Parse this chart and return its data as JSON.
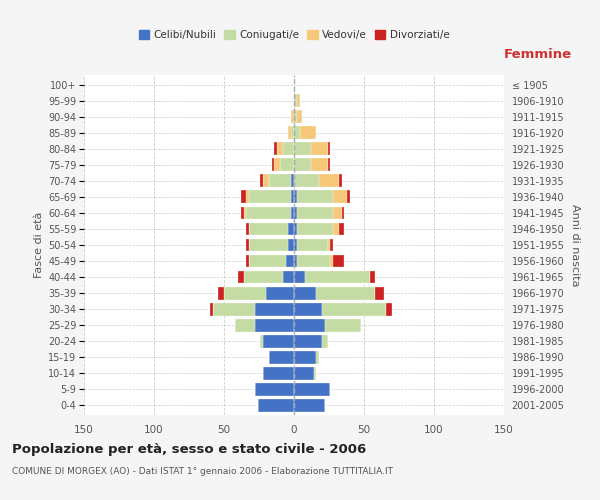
{
  "age_groups": [
    "0-4",
    "5-9",
    "10-14",
    "15-19",
    "20-24",
    "25-29",
    "30-34",
    "35-39",
    "40-44",
    "45-49",
    "50-54",
    "55-59",
    "60-64",
    "65-69",
    "70-74",
    "75-79",
    "80-84",
    "85-89",
    "90-94",
    "95-99",
    "100+"
  ],
  "birth_years": [
    "2001-2005",
    "1996-2000",
    "1991-1995",
    "1986-1990",
    "1981-1985",
    "1976-1980",
    "1971-1975",
    "1966-1970",
    "1961-1965",
    "1956-1960",
    "1951-1955",
    "1946-1950",
    "1941-1945",
    "1936-1940",
    "1931-1935",
    "1926-1930",
    "1921-1925",
    "1916-1920",
    "1911-1915",
    "1906-1910",
    "≤ 1905"
  ],
  "male": {
    "celibi": [
      26,
      28,
      22,
      18,
      22,
      28,
      28,
      20,
      8,
      6,
      4,
      4,
      2,
      2,
      2,
      0,
      0,
      0,
      0,
      0,
      0
    ],
    "coniugati": [
      0,
      0,
      0,
      0,
      2,
      14,
      30,
      30,
      28,
      26,
      28,
      28,
      32,
      30,
      16,
      10,
      8,
      2,
      0,
      0,
      0
    ],
    "vedovi": [
      0,
      0,
      0,
      0,
      0,
      0,
      0,
      0,
      0,
      0,
      0,
      0,
      2,
      2,
      4,
      4,
      4,
      2,
      2,
      0,
      0
    ],
    "divorziati": [
      0,
      0,
      0,
      0,
      0,
      0,
      2,
      4,
      4,
      2,
      2,
      2,
      2,
      4,
      2,
      2,
      2,
      0,
      0,
      0,
      0
    ]
  },
  "female": {
    "nubili": [
      22,
      26,
      14,
      16,
      20,
      22,
      20,
      16,
      8,
      2,
      2,
      2,
      2,
      2,
      0,
      0,
      0,
      0,
      0,
      0,
      0
    ],
    "coniugate": [
      0,
      0,
      2,
      2,
      4,
      26,
      46,
      42,
      46,
      24,
      22,
      26,
      26,
      26,
      18,
      12,
      12,
      4,
      2,
      2,
      0
    ],
    "vedove": [
      0,
      0,
      0,
      0,
      0,
      0,
      0,
      0,
      0,
      2,
      2,
      4,
      6,
      10,
      14,
      12,
      12,
      12,
      4,
      2,
      0
    ],
    "divorziate": [
      0,
      0,
      0,
      0,
      0,
      0,
      4,
      6,
      4,
      8,
      2,
      4,
      2,
      2,
      2,
      2,
      2,
      0,
      0,
      0,
      0
    ]
  },
  "colors": {
    "celibi": "#4472c4",
    "coniugati": "#c5dba4",
    "vedovi": "#f5c87a",
    "divorziati": "#cc2222"
  },
  "xlim": 150,
  "title": "Popolazione per età, sesso e stato civile - 2006",
  "subtitle": "COMUNE DI MORGEX (AO) - Dati ISTAT 1° gennaio 2006 - Elaborazione TUTTITALIA.IT",
  "ylabel_left": "Fasce di età",
  "ylabel_right": "Anni di nascita",
  "xlabel_right": "Femmine",
  "legend_labels": [
    "Celibi/Nubili",
    "Coniugati/e",
    "Vedovi/e",
    "Divorziati/e"
  ],
  "background_color": "#f5f5f5",
  "plot_bg_color": "#ffffff"
}
